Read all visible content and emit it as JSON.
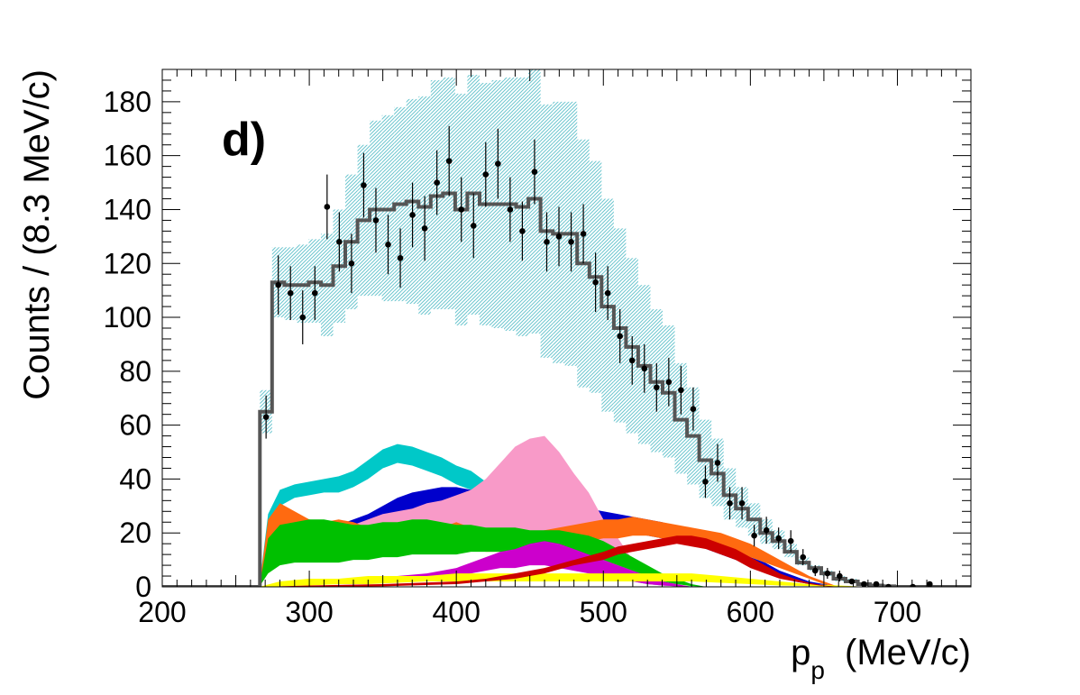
{
  "chart_data": {
    "type": "bar",
    "panel_label": "d)",
    "xlabel_main": "p",
    "xlabel_sub": "p",
    "xlabel_unit": "(MeV/c)",
    "ylabel": "Counts / (8.3 MeV/c)",
    "xlim": [
      200,
      750
    ],
    "ylim": [
      0,
      192
    ],
    "bin_width": 8.3,
    "x_ticks": [
      200,
      300,
      400,
      500,
      600,
      700
    ],
    "y_ticks": [
      0,
      20,
      40,
      60,
      80,
      100,
      120,
      140,
      160,
      180
    ],
    "colors": {
      "mc_total": "#555555",
      "mc_uncertainty": "#7fd0d8",
      "data": "#000000",
      "cyan": "#00c8c8",
      "blue": "#0000cc",
      "pink": "#f89ac8",
      "orange": "#ff6a10",
      "green": "#00c000",
      "magenta": "#cc00cc",
      "yellow": "#ffff00",
      "red": "#cc0000"
    },
    "data_points": {
      "x": [
        270.6,
        278.9,
        287.2,
        295.5,
        303.8,
        312.1,
        320.4,
        328.7,
        337.0,
        345.3,
        353.6,
        361.9,
        370.2,
        378.5,
        386.8,
        395.1,
        403.4,
        411.7,
        420.0,
        428.3,
        436.6,
        444.9,
        453.2,
        461.5,
        469.8,
        478.1,
        486.4,
        494.7,
        503.0,
        511.3,
        519.6,
        527.9,
        536.2,
        544.5,
        552.8,
        561.1,
        569.4,
        577.7,
        586.0,
        594.3,
        602.6,
        610.9,
        619.2,
        627.5,
        635.8,
        644.1,
        652.4,
        660.7,
        669.0,
        677.3,
        685.6,
        693.9,
        710.5,
        722.0
      ],
      "y": [
        63,
        112,
        109,
        100,
        109,
        141,
        128,
        120,
        149,
        136,
        127,
        122,
        138,
        133,
        150,
        158,
        140,
        134,
        153,
        157,
        140,
        132,
        154,
        128,
        130,
        128,
        131,
        113,
        109,
        93,
        84,
        81,
        74,
        76,
        73,
        66,
        39,
        46,
        31,
        31,
        19,
        21,
        18,
        17,
        11,
        6,
        5,
        4,
        2,
        1,
        1,
        0,
        0,
        1
      ],
      "err": [
        8,
        11,
        10,
        10,
        10,
        12,
        11,
        11,
        12,
        12,
        11,
        11,
        12,
        12,
        12,
        13,
        12,
        12,
        12,
        13,
        12,
        11,
        12,
        11,
        11,
        11,
        11,
        11,
        10,
        10,
        9,
        9,
        9,
        9,
        9,
        8,
        6,
        7,
        6,
        6,
        4,
        5,
        4,
        4,
        3,
        2,
        2,
        2,
        1,
        1,
        1,
        0,
        0,
        1
      ]
    },
    "series": [
      {
        "name": "mc_total",
        "type": "step",
        "color": "#555555",
        "edges": [
          200,
          266.4,
          274.7,
          283.0,
          291.3,
          299.6,
          307.9,
          316.2,
          324.5,
          332.8,
          341.1,
          349.4,
          357.7,
          366.0,
          374.3,
          382.6,
          390.9,
          399.2,
          407.5,
          415.8,
          424.1,
          432.4,
          440.7,
          449.0,
          457.3,
          465.6,
          473.9,
          482.2,
          490.5,
          498.8,
          507.1,
          515.4,
          523.7,
          532.0,
          540.3,
          548.6,
          556.9,
          565.2,
          573.5,
          581.8,
          590.1,
          598.4,
          606.7,
          615.0,
          623.3,
          631.6,
          639.9,
          648.2,
          656.5,
          664.8,
          673.1,
          681.4,
          689.7,
          698.0,
          750
        ],
        "values": [
          0,
          65,
          113,
          112,
          112,
          113,
          112,
          119,
          128,
          136,
          140,
          140,
          142,
          143,
          141,
          145,
          146,
          140,
          146,
          142,
          142,
          142,
          141,
          144,
          132,
          131,
          131,
          120,
          115,
          104,
          96,
          89,
          82,
          76,
          72,
          62,
          56,
          47,
          42,
          34,
          29,
          25,
          20,
          17,
          13,
          9,
          7,
          5,
          3,
          2,
          1,
          0.5,
          0.2,
          0
        ],
        "band_lo": [
          0,
          57,
          100,
          99,
          98,
          98,
          93,
          98,
          103,
          108,
          108,
          106,
          106,
          105,
          101,
          103,
          103,
          97,
          101,
          97,
          96,
          95,
          93,
          94,
          85,
          83,
          82,
          74,
          72,
          65,
          61,
          57,
          53,
          50,
          48,
          42,
          38,
          33,
          30,
          25,
          22,
          19,
          16,
          14,
          11,
          8,
          6,
          4,
          2,
          1.5,
          1,
          0.4,
          0.1,
          0
        ],
        "band_hi": [
          0,
          73,
          126,
          126,
          127,
          129,
          131,
          140,
          153,
          164,
          173,
          175,
          178,
          181,
          182,
          188,
          189,
          183,
          190,
          187,
          188,
          189,
          189,
          195,
          179,
          180,
          180,
          166,
          158,
          144,
          133,
          122,
          112,
          103,
          97,
          83,
          74,
          62,
          55,
          44,
          37,
          31,
          25,
          21,
          16,
          11,
          8,
          6,
          4,
          3,
          1.5,
          0.7,
          0.3,
          0
        ]
      },
      {
        "name": "cyan",
        "color": "#00c8c8",
        "x": [
          266,
          272,
          280,
          290,
          300,
          310,
          320,
          330,
          340,
          350,
          360,
          370,
          380,
          390,
          400,
          410,
          420,
          430,
          440,
          450,
          460,
          470,
          480,
          490,
          500,
          510,
          520,
          530,
          540,
          550,
          560,
          570,
          580
        ],
        "lo": [
          0,
          22,
          30,
          33,
          34,
          35,
          35,
          37,
          40,
          44,
          46,
          45,
          43,
          41,
          38,
          36,
          32,
          27,
          23,
          19,
          16,
          13,
          10,
          7,
          5,
          3,
          2,
          1,
          0.5,
          0.2,
          0.1,
          0,
          0
        ],
        "hi": [
          0,
          27,
          36,
          38,
          39,
          40,
          41,
          43,
          47,
          51,
          53,
          52,
          50,
          48,
          45,
          43,
          39,
          34,
          30,
          26,
          22,
          18,
          14,
          10,
          8,
          5,
          3,
          2,
          1,
          0.5,
          0.2,
          0.1,
          0
        ]
      },
      {
        "name": "blue",
        "color": "#0000cc",
        "x": [
          266,
          272,
          280,
          290,
          300,
          310,
          320,
          330,
          340,
          350,
          360,
          370,
          380,
          390,
          400,
          410,
          420,
          430,
          440,
          450,
          460,
          470,
          480,
          490,
          500,
          510,
          520,
          530,
          540,
          550,
          560,
          570,
          580,
          590,
          600,
          610,
          620,
          630,
          640,
          650,
          660
        ],
        "lo": [
          0,
          8,
          14,
          15,
          16,
          16,
          17,
          18,
          20,
          23,
          26,
          28,
          29,
          30,
          31,
          30,
          30,
          29,
          28,
          27,
          26,
          25,
          24,
          23,
          22,
          21,
          20,
          19,
          18,
          17,
          16,
          14,
          12,
          10,
          8,
          6,
          4,
          2,
          1,
          0.4,
          0
        ],
        "hi": [
          0,
          13,
          20,
          21,
          22,
          22,
          23,
          25,
          27,
          30,
          33,
          35,
          36,
          37,
          37,
          36,
          36,
          35,
          34,
          33,
          32,
          31,
          30,
          29,
          28,
          27,
          26,
          25,
          24,
          22,
          21,
          19,
          17,
          14,
          11,
          9,
          6,
          4,
          2,
          1,
          0
        ]
      },
      {
        "name": "pink",
        "color": "#f89ac8",
        "x": [
          266,
          272,
          280,
          290,
          300,
          310,
          320,
          330,
          340,
          350,
          360,
          370,
          380,
          390,
          400,
          410,
          420,
          430,
          440,
          450,
          460,
          470,
          480,
          490,
          500,
          510,
          520,
          530,
          540,
          550,
          560
        ],
        "lo": [
          0,
          6,
          10,
          11,
          12,
          13,
          14,
          15,
          16,
          16,
          17,
          17,
          18,
          18,
          18,
          17,
          16,
          15,
          13,
          11,
          9,
          7,
          6,
          5,
          4,
          3,
          2,
          1,
          0.5,
          0.2,
          0
        ],
        "hi": [
          0,
          10,
          16,
          18,
          19,
          20,
          21,
          23,
          25,
          27,
          28,
          29,
          31,
          32,
          34,
          36,
          40,
          46,
          52,
          55,
          56,
          50,
          42,
          35,
          25,
          18,
          10,
          5,
          2,
          0.5,
          0
        ]
      },
      {
        "name": "orange",
        "color": "#ff6a10",
        "x": [
          266,
          272,
          280,
          290,
          300,
          310,
          320,
          330,
          340,
          350,
          360,
          370,
          380,
          390,
          400,
          410,
          420,
          430,
          440,
          450,
          460,
          470,
          480,
          490,
          500,
          510,
          520,
          530,
          540,
          550,
          560,
          570,
          580,
          590,
          600,
          610,
          620,
          630,
          640,
          650,
          660
        ],
        "lo": [
          0,
          15,
          22,
          20,
          18,
          17,
          18,
          17,
          16,
          17,
          16,
          15,
          15,
          14,
          15,
          14,
          13,
          13,
          13,
          13,
          14,
          15,
          16,
          17,
          18,
          18,
          19,
          19,
          18,
          17,
          16,
          15,
          14,
          13,
          11,
          9,
          7,
          5,
          3,
          1,
          0
        ],
        "hi": [
          0,
          25,
          31,
          28,
          25,
          24,
          25,
          24,
          22,
          23,
          22,
          22,
          23,
          22,
          24,
          22,
          21,
          20,
          20,
          20,
          21,
          22,
          23,
          24,
          25,
          25,
          26,
          25,
          24,
          23,
          22,
          21,
          20,
          18,
          16,
          13,
          10,
          7,
          4,
          2,
          0
        ]
      },
      {
        "name": "green",
        "color": "#00c000",
        "x": [
          266,
          272,
          280,
          290,
          300,
          310,
          320,
          330,
          340,
          350,
          360,
          370,
          380,
          390,
          400,
          410,
          420,
          430,
          440,
          450,
          460,
          470,
          480,
          490,
          500,
          510,
          520,
          530,
          540,
          550,
          560,
          570
        ],
        "lo": [
          0,
          5,
          8,
          9,
          9,
          9,
          9,
          10,
          10,
          11,
          11,
          12,
          12,
          12,
          12,
          13,
          13,
          13,
          13,
          13,
          12,
          12,
          12,
          11,
          10,
          8,
          6,
          4,
          2,
          1,
          0.3,
          0
        ],
        "hi": [
          0,
          18,
          23,
          24,
          25,
          25,
          24,
          23,
          23,
          24,
          24,
          25,
          25,
          24,
          23,
          23,
          22,
          22,
          22,
          21,
          21,
          21,
          20,
          19,
          17,
          14,
          11,
          8,
          5,
          3,
          1,
          0
        ]
      },
      {
        "name": "magenta",
        "color": "#cc00cc",
        "x": [
          266,
          280,
          300,
          320,
          340,
          360,
          380,
          400,
          410,
          420,
          430,
          440,
          450,
          460,
          470,
          480,
          490,
          500,
          510,
          520,
          530,
          540,
          550,
          560
        ],
        "lo": [
          0,
          0.5,
          1,
          1,
          2,
          2,
          3,
          4,
          5,
          6,
          7,
          7,
          8,
          8,
          7,
          6,
          5,
          4,
          3,
          2,
          1,
          0.5,
          0.2,
          0
        ],
        "hi": [
          0,
          1,
          2,
          3,
          3,
          4,
          5,
          7,
          9,
          11,
          13,
          14,
          16,
          17,
          16,
          14,
          12,
          10,
          8,
          6,
          4,
          2,
          1,
          0
        ]
      },
      {
        "name": "yellow",
        "color": "#ffff00",
        "x": [
          266,
          280,
          300,
          320,
          340,
          360,
          380,
          400,
          420,
          440,
          460,
          480,
          500,
          520,
          540,
          560,
          580,
          600,
          620,
          640,
          660,
          680
        ],
        "lo": [
          0,
          0.2,
          0.5,
          1,
          1,
          1.5,
          2,
          2,
          2,
          2,
          2,
          2,
          2,
          2,
          2,
          2,
          1.5,
          1,
          0.5,
          0.3,
          0.1,
          0
        ],
        "hi": [
          0,
          2,
          3,
          3,
          4,
          4,
          4,
          5,
          5,
          5,
          5,
          5,
          5,
          5,
          5,
          5,
          4,
          3,
          2,
          1,
          0.5,
          0
        ]
      },
      {
        "name": "red",
        "color": "#cc0000",
        "x": [
          266,
          300,
          350,
          400,
          420,
          440,
          460,
          480,
          500,
          510,
          520,
          530,
          540,
          550,
          560,
          570,
          580,
          590,
          600,
          610,
          620,
          630,
          640,
          650,
          660
        ],
        "lo": [
          0,
          0,
          0.2,
          1,
          2,
          3,
          5,
          8,
          10,
          12,
          13,
          14,
          15,
          16,
          15,
          14,
          12,
          10,
          7,
          5,
          3,
          2,
          1,
          0.3,
          0
        ],
        "hi": [
          0,
          0.5,
          1,
          2,
          3,
          5,
          7,
          10,
          13,
          15,
          16,
          17,
          18,
          19,
          19,
          18,
          16,
          14,
          11,
          8,
          5,
          3,
          1.5,
          0.5,
          0
        ]
      }
    ]
  }
}
